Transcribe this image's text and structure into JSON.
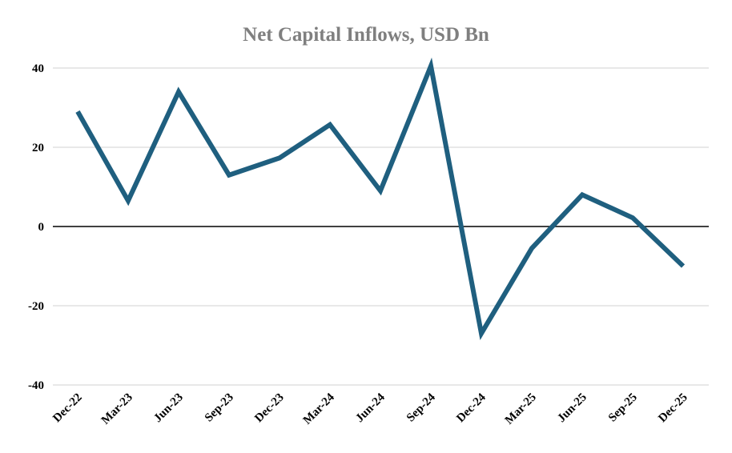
{
  "chart_data": {
    "type": "line",
    "title": "Net Capital Inflows, USD Bn",
    "xlabel": "",
    "ylabel": "",
    "categories": [
      "Dec-22",
      "Mar-23",
      "Jun-23",
      "Sep-23",
      "Dec-23",
      "Mar-24",
      "Jun-24",
      "Sep-24",
      "Dec-24",
      "Mar-25",
      "Jun-25",
      "Sep-25",
      "Dec-25"
    ],
    "series": [
      {
        "values": [
          29,
          6.5,
          34,
          13,
          17.3,
          25.7,
          9,
          40.5,
          -27,
          -5.5,
          8,
          2.2,
          -10
        ],
        "color": "#1f5f7f"
      }
    ],
    "ylim": [
      -40,
      40
    ],
    "yticks": [
      40,
      20,
      0,
      -20,
      -40
    ],
    "grid": true,
    "zero_line": true,
    "legend": "none"
  }
}
